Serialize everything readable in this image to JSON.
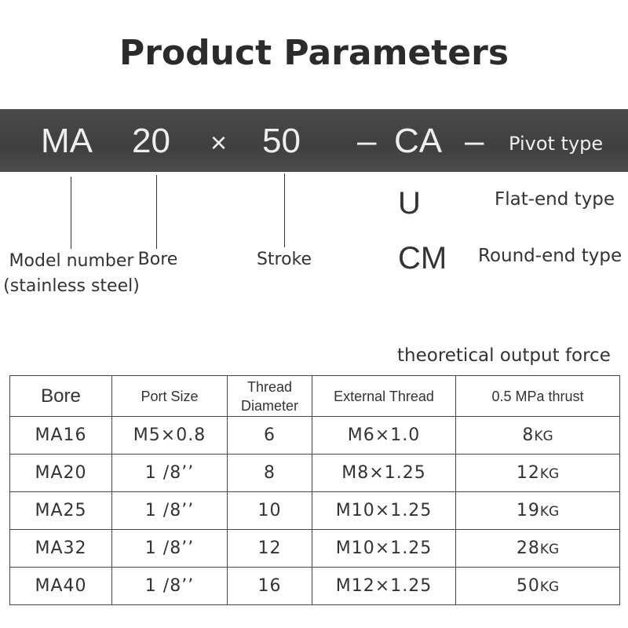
{
  "title": "Product Parameters",
  "code": {
    "model": "MA",
    "bore": "20",
    "times": "×",
    "stroke": "50",
    "dash1": "–",
    "type": "CA",
    "dash2": "–",
    "pivot_label": "Pivot type"
  },
  "labels": {
    "model": "Model number (stainless steel)",
    "bore": "Bore",
    "stroke": "Stroke"
  },
  "types": [
    {
      "code": "U",
      "desc": "Flat-end type"
    },
    {
      "code": "CM",
      "desc": "Round-end type"
    }
  ],
  "table_caption": "theoretical output force",
  "table": {
    "headers": [
      "Bore",
      "Port Size",
      "Thread Diameter",
      "External Thread",
      "0.5 MPa thrust"
    ],
    "unit": "KG",
    "rows": [
      [
        "MA16",
        "M5×0.8",
        "6",
        "M6×1.0",
        "8"
      ],
      [
        "MA20",
        "1 /8’’",
        "8",
        "M8×1.25",
        "12"
      ],
      [
        "MA25",
        "1 /8’’",
        "10",
        "M10×1.25",
        "19"
      ],
      [
        "MA32",
        "1 /8’’",
        "12",
        "M10×1.25",
        "28"
      ],
      [
        "MA40",
        "1 /8’’",
        "16",
        "M12×1.25",
        "50"
      ]
    ]
  }
}
